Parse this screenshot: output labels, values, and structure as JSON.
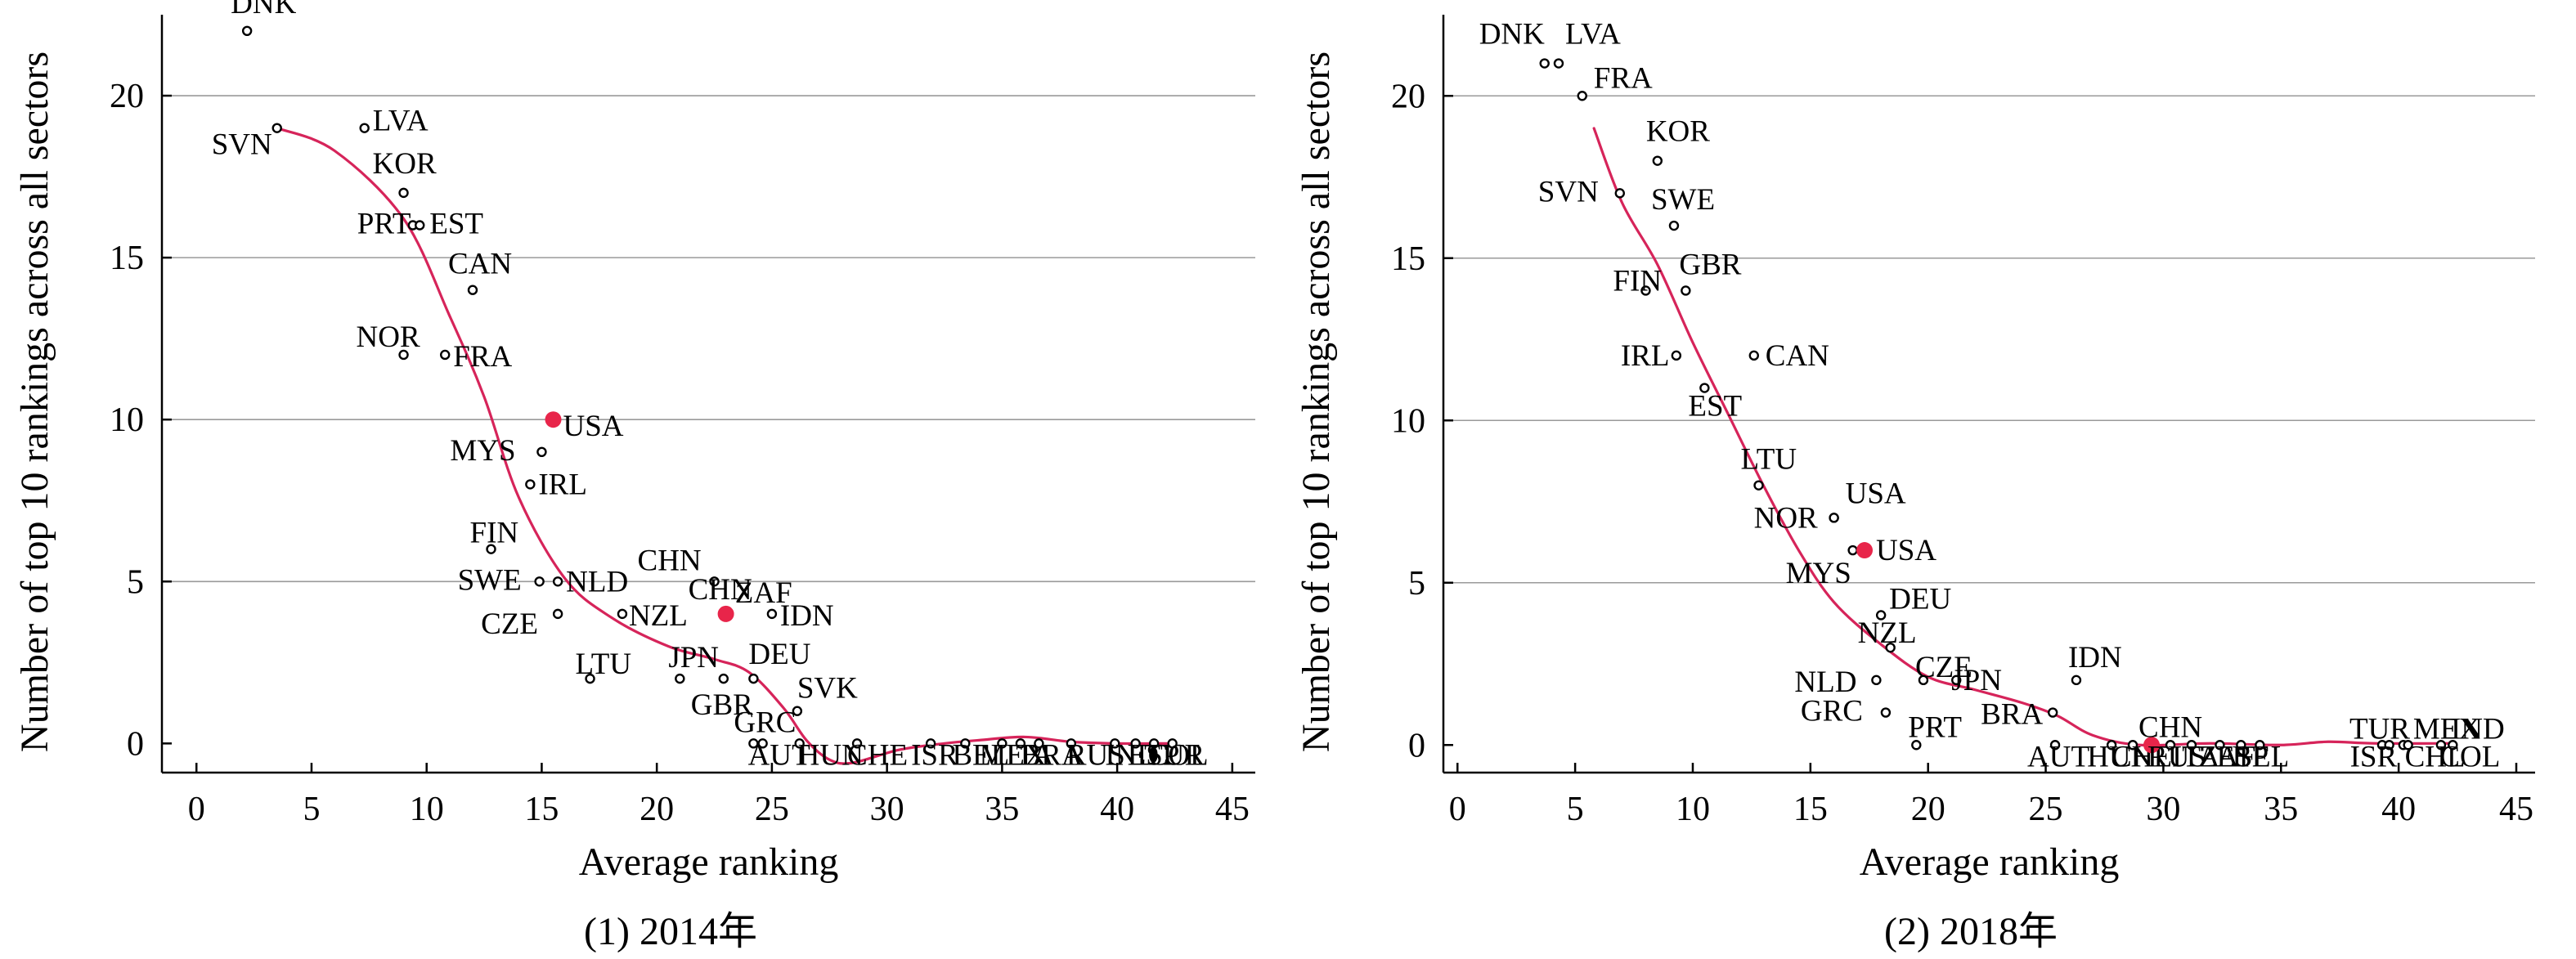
{
  "colors": {
    "highlight": "#e8254a",
    "fit_line": "#d6245a",
    "grid": "#9a9a9a"
  },
  "chart_data": [
    {
      "type": "scatter",
      "caption": "(1) 2014年",
      "xlabel": "Average ranking",
      "ylabel": "Number of top 10 rankings across all sectors",
      "xlim": [
        -1.5,
        46
      ],
      "ylim": [
        -0.9,
        22.5
      ],
      "xticks": [
        "0",
        "5",
        "10",
        "15",
        "20",
        "25",
        "30",
        "35",
        "40",
        "45"
      ],
      "yticks": [
        "0",
        "5",
        "10",
        "15",
        "20"
      ],
      "grid": "horizontal",
      "highlight": "CHN",
      "points": [
        {
          "label": "DNK",
          "x": 2.2,
          "y": 22
        },
        {
          "label": "SVN",
          "x": 3.5,
          "y": 19
        },
        {
          "label": "LVA",
          "x": 7.3,
          "y": 19
        },
        {
          "label": "KOR",
          "x": 9.0,
          "y": 17
        },
        {
          "label": "PRT",
          "x": 9.4,
          "y": 16
        },
        {
          "label": "EST",
          "x": 9.7,
          "y": 16
        },
        {
          "label": "CAN",
          "x": 12.0,
          "y": 14
        },
        {
          "label": "NOR",
          "x": 9.0,
          "y": 12
        },
        {
          "label": "FRA",
          "x": 10.8,
          "y": 12
        },
        {
          "label": "USA",
          "x": 15.5,
          "y": 10,
          "highlight": true
        },
        {
          "label": "MYS",
          "x": 15.0,
          "y": 9
        },
        {
          "label": "IRL",
          "x": 14.5,
          "y": 8
        },
        {
          "label": "FIN",
          "x": 12.8,
          "y": 6
        },
        {
          "label": "SWE",
          "x": 14.9,
          "y": 5
        },
        {
          "label": "NLD",
          "x": 15.7,
          "y": 5
        },
        {
          "label": "CZE",
          "x": 15.7,
          "y": 4
        },
        {
          "label": "NZL",
          "x": 18.5,
          "y": 4
        },
        {
          "label": "CHN",
          "x": 22.5,
          "y": 5
        },
        {
          "label": "ZAF",
          "x": 22.9,
          "y": 4
        },
        {
          "label": "CHN",
          "x": 23.0,
          "y": 4,
          "highlight": true
        },
        {
          "label": "IDN",
          "x": 25.0,
          "y": 4
        },
        {
          "label": "LTU",
          "x": 17.1,
          "y": 2
        },
        {
          "label": "JPN",
          "x": 21.0,
          "y": 2
        },
        {
          "label": "GBR",
          "x": 22.9,
          "y": 2
        },
        {
          "label": "DEU",
          "x": 24.2,
          "y": 2
        },
        {
          "label": "SVK",
          "x": 26.1,
          "y": 1
        },
        {
          "label": "GRC",
          "x": 24.2,
          "y": 0
        },
        {
          "label": "AUT",
          "x": 24.6,
          "y": 0
        },
        {
          "label": "HUN",
          "x": 26.2,
          "y": 0
        },
        {
          "label": "CHE",
          "x": 28.7,
          "y": 0
        },
        {
          "label": "ISR",
          "x": 31.9,
          "y": 0
        },
        {
          "label": "BEL",
          "x": 33.4,
          "y": 0
        },
        {
          "label": "MEX",
          "x": 35.0,
          "y": 0
        },
        {
          "label": "ITA",
          "x": 35.8,
          "y": 0
        },
        {
          "label": "BRA",
          "x": 36.6,
          "y": 0
        },
        {
          "label": "RUS",
          "x": 38.0,
          "y": 0
        },
        {
          "label": "IND",
          "x": 39.9,
          "y": 0
        },
        {
          "label": "ESP",
          "x": 40.8,
          "y": 0
        },
        {
          "label": "TUR",
          "x": 41.6,
          "y": 0
        },
        {
          "label": "COL",
          "x": 42.4,
          "y": 0
        }
      ],
      "fit_line": [
        [
          3.5,
          19
        ],
        [
          6,
          18.3
        ],
        [
          9,
          16.2
        ],
        [
          11,
          13.2
        ],
        [
          12.5,
          10.7
        ],
        [
          14,
          7.6
        ],
        [
          16,
          5.1
        ],
        [
          18,
          3.9
        ],
        [
          20.5,
          3.0
        ],
        [
          22.5,
          2.6
        ],
        [
          24,
          2.2
        ],
        [
          25.5,
          1.1
        ],
        [
          26.5,
          0.1
        ],
        [
          27.5,
          -0.5
        ],
        [
          28.5,
          -0.6
        ],
        [
          30.5,
          -0.2
        ],
        [
          32.5,
          0.0
        ],
        [
          34,
          0.1
        ],
        [
          36,
          0.2
        ],
        [
          38,
          0.05
        ],
        [
          40,
          0.0
        ],
        [
          42.3,
          0.0
        ]
      ]
    },
    {
      "type": "scatter",
      "caption": "(2) 2018年",
      "xlabel": "Average ranking",
      "ylabel": "Number of top 10 rankings across all sectors",
      "xlim": [
        -0.6,
        45.8
      ],
      "ylim": [
        -0.85,
        22.5
      ],
      "xticks": [
        "0",
        "5",
        "10",
        "15",
        "20",
        "25",
        "30",
        "35",
        "40",
        "45"
      ],
      "yticks": [
        "0",
        "5",
        "10",
        "15",
        "20"
      ],
      "grid": "horizontal",
      "highlight": "CHN",
      "points": [
        {
          "label": "DNK",
          "x": 3.7,
          "y": 21
        },
        {
          "label": "LVA",
          "x": 4.3,
          "y": 21
        },
        {
          "label": "FRA",
          "x": 5.3,
          "y": 20
        },
        {
          "label": "KOR",
          "x": 8.5,
          "y": 18
        },
        {
          "label": "SVN",
          "x": 6.9,
          "y": 17
        },
        {
          "label": "SWE",
          "x": 9.2,
          "y": 16
        },
        {
          "label": "FIN",
          "x": 8.0,
          "y": 14
        },
        {
          "label": "GBR",
          "x": 9.7,
          "y": 14
        },
        {
          "label": "IRL",
          "x": 9.3,
          "y": 12
        },
        {
          "label": "CAN",
          "x": 12.6,
          "y": 12
        },
        {
          "label": "EST",
          "x": 10.5,
          "y": 11
        },
        {
          "label": "LTU",
          "x": 12.8,
          "y": 8
        },
        {
          "label": "USA",
          "x": 16.0,
          "y": 7
        },
        {
          "label": "NOR",
          "x": 16.0,
          "y": 7
        },
        {
          "label": "MYS",
          "x": 16.8,
          "y": 6
        },
        {
          "label": "USA",
          "x": 17.3,
          "y": 6,
          "highlight": true
        },
        {
          "label": "DEU",
          "x": 18.0,
          "y": 4
        },
        {
          "label": "NZL",
          "x": 18.4,
          "y": 3
        },
        {
          "label": "CZE",
          "x": 19.8,
          "y": 2
        },
        {
          "label": "NLD",
          "x": 17.8,
          "y": 2
        },
        {
          "label": "JPN",
          "x": 21.2,
          "y": 2
        },
        {
          "label": "IDN",
          "x": 26.3,
          "y": 2
        },
        {
          "label": "GRC",
          "x": 18.2,
          "y": 1
        },
        {
          "label": "BRA",
          "x": 25.3,
          "y": 1
        },
        {
          "label": "PRT",
          "x": 19.5,
          "y": 0
        },
        {
          "label": "AUT",
          "x": 25.4,
          "y": 0
        },
        {
          "label": "HUN",
          "x": 27.8,
          "y": 0
        },
        {
          "label": "CHE",
          "x": 28.7,
          "y": 0
        },
        {
          "label": "CHN",
          "x": 29.5,
          "y": 0,
          "highlight": true
        },
        {
          "label": "RUS",
          "x": 30.3,
          "y": 0
        },
        {
          "label": "ITA",
          "x": 31.2,
          "y": 0
        },
        {
          "label": "ZAF",
          "x": 32.4,
          "y": 0
        },
        {
          "label": "ESP",
          "x": 33.3,
          "y": 0
        },
        {
          "label": "BEL",
          "x": 34.1,
          "y": 0
        },
        {
          "label": "TUR",
          "x": 39.3,
          "y": 0
        },
        {
          "label": "ISR",
          "x": 39.6,
          "y": 0
        },
        {
          "label": "MEX",
          "x": 40.2,
          "y": 0
        },
        {
          "label": "IND",
          "x": 41.8,
          "y": 0
        },
        {
          "label": "CHL",
          "x": 40.4,
          "y": 0
        },
        {
          "label": "COL",
          "x": 42.3,
          "y": 0
        }
      ],
      "fit_line": [
        [
          5.8,
          19.0
        ],
        [
          7,
          16.7
        ],
        [
          8.5,
          14.8
        ],
        [
          10,
          12.4
        ],
        [
          11.5,
          10.2
        ],
        [
          13,
          8.0
        ],
        [
          14.5,
          6.0
        ],
        [
          16,
          4.4
        ],
        [
          18,
          3.1
        ],
        [
          20,
          2.1
        ],
        [
          22,
          1.7
        ],
        [
          24,
          1.3
        ],
        [
          25.5,
          0.9
        ],
        [
          27,
          0.3
        ],
        [
          29,
          0.0
        ],
        [
          32,
          0.05
        ],
        [
          35,
          0.0
        ],
        [
          37,
          0.1
        ],
        [
          39,
          0.05
        ],
        [
          42.3,
          0.05
        ]
      ]
    }
  ]
}
